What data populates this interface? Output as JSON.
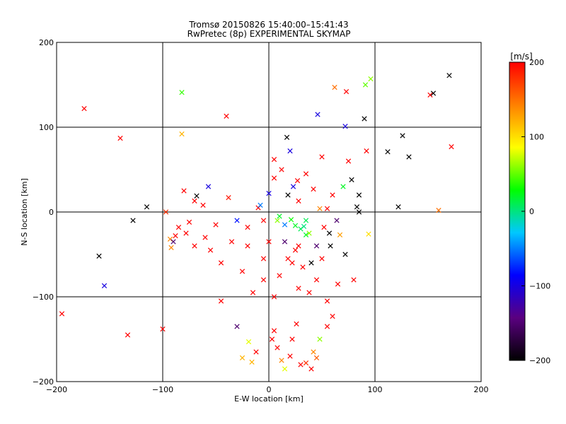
{
  "chart_data": {
    "type": "scatter",
    "title": "Tromsø 20150826 15:40:00–15:41:43",
    "subtitle": "RwPretec (8p) EXPERIMENTAL SKYMAP",
    "xlabel": "E-W location [km]",
    "ylabel": "N-S location [km]",
    "xlim": [
      -200,
      200
    ],
    "ylim": [
      -200,
      200
    ],
    "x_ticks": [
      "-200",
      "-100",
      "0",
      "100",
      "200"
    ],
    "y_ticks": [
      "-200",
      "-100",
      "0",
      "100",
      "200"
    ],
    "grid_lines": [
      -100,
      0,
      100
    ],
    "colorbar": {
      "label": "[m/s]",
      "range": [
        -200,
        200
      ],
      "ticks": [
        "-200",
        "-100",
        "0",
        "100",
        "200"
      ],
      "colors": [
        "#000000",
        "#5a0080",
        "#0000ff",
        "#00c8ff",
        "#00ff00",
        "#ffff00",
        "#ff8000",
        "#ff0000"
      ]
    },
    "large_markers": [
      {
        "x": -195,
        "y": -120,
        "v": 200
      },
      {
        "x": -174,
        "y": 122,
        "v": 200
      },
      {
        "x": -160,
        "y": -52,
        "v": -200
      },
      {
        "x": -155,
        "y": -87,
        "v": -100
      },
      {
        "x": -140,
        "y": 87,
        "v": 200
      },
      {
        "x": -133,
        "y": -145,
        "v": 200
      },
      {
        "x": -128,
        "y": -10,
        "v": -200
      },
      {
        "x": -115,
        "y": 6,
        "v": -200
      },
      {
        "x": -100,
        "y": -138,
        "v": 200
      },
      {
        "x": -97,
        "y": 0,
        "v": 180
      },
      {
        "x": -93,
        "y": -32,
        "v": 140
      },
      {
        "x": -92,
        "y": -42,
        "v": 140
      },
      {
        "x": -90,
        "y": -35,
        "v": -150
      },
      {
        "x": -82,
        "y": 141,
        "v": 40
      },
      {
        "x": -82,
        "y": 92,
        "v": 120
      },
      {
        "x": -80,
        "y": 25,
        "v": 200
      },
      {
        "x": -75,
        "y": -12,
        "v": 200
      },
      {
        "x": -70,
        "y": 13,
        "v": 200
      },
      {
        "x": -68,
        "y": 19,
        "v": -200
      },
      {
        "x": -62,
        "y": 8,
        "v": 200
      },
      {
        "x": -57,
        "y": 30,
        "v": -100
      },
      {
        "x": -45,
        "y": -105,
        "v": 200
      },
      {
        "x": -40,
        "y": 113,
        "v": 200
      },
      {
        "x": -38,
        "y": 17,
        "v": 190
      },
      {
        "x": -30,
        "y": -135,
        "v": -150
      },
      {
        "x": -25,
        "y": -172,
        "v": 120
      },
      {
        "x": -19,
        "y": -153,
        "v": 80
      },
      {
        "x": -16,
        "y": -177,
        "v": 120
      },
      {
        "x": -12,
        "y": -165,
        "v": 200
      },
      {
        "x": -10,
        "y": 5,
        "v": 200
      },
      {
        "x": -8,
        "y": 8,
        "v": -50
      },
      {
        "x": -5,
        "y": -80,
        "v": 200
      },
      {
        "x": 5,
        "y": 62,
        "v": 200
      },
      {
        "x": 8,
        "y": -10,
        "v": 60
      },
      {
        "x": 10,
        "y": -5,
        "v": 20
      },
      {
        "x": 15,
        "y": -35,
        "v": -150
      },
      {
        "x": 17,
        "y": 88,
        "v": -200
      },
      {
        "x": 20,
        "y": 72,
        "v": -100
      },
      {
        "x": 21,
        "y": -9,
        "v": 30
      },
      {
        "x": 25,
        "y": -16,
        "v": 20
      },
      {
        "x": 27,
        "y": 37,
        "v": 200
      },
      {
        "x": 30,
        "y": -20,
        "v": 10
      },
      {
        "x": 33,
        "y": -17,
        "v": 0
      },
      {
        "x": 35,
        "y": -27,
        "v": 20
      },
      {
        "x": 38,
        "y": -25,
        "v": 60
      },
      {
        "x": 40,
        "y": -60,
        "v": -200
      },
      {
        "x": 42,
        "y": 27,
        "v": 200
      },
      {
        "x": 45,
        "y": -40,
        "v": -150
      },
      {
        "x": 46,
        "y": 115,
        "v": -100
      },
      {
        "x": 48,
        "y": 4,
        "v": 140
      },
      {
        "x": 50,
        "y": 65,
        "v": 200
      },
      {
        "x": 55,
        "y": 4,
        "v": 200
      },
      {
        "x": 57,
        "y": -25,
        "v": -200
      },
      {
        "x": 62,
        "y": 147,
        "v": 150
      },
      {
        "x": 65,
        "y": -85,
        "v": 200
      },
      {
        "x": 67,
        "y": -27,
        "v": 130
      },
      {
        "x": 70,
        "y": 30,
        "v": 20
      },
      {
        "x": 72,
        "y": 101,
        "v": -100
      },
      {
        "x": 73,
        "y": 142,
        "v": 200
      },
      {
        "x": 75,
        "y": 60,
        "v": 200
      },
      {
        "x": 80,
        "y": -80,
        "v": 200
      },
      {
        "x": 83,
        "y": 6,
        "v": -200
      },
      {
        "x": 85,
        "y": 20,
        "v": -200
      },
      {
        "x": 90,
        "y": 110,
        "v": -200
      },
      {
        "x": 91,
        "y": 150,
        "v": 50
      },
      {
        "x": 92,
        "y": 72,
        "v": 200
      },
      {
        "x": 94,
        "y": -26,
        "v": 100
      },
      {
        "x": 96,
        "y": 157,
        "v": 60
      },
      {
        "x": 112,
        "y": 71,
        "v": -200
      },
      {
        "x": 122,
        "y": 6,
        "v": -200
      },
      {
        "x": 126,
        "y": 90,
        "v": -200
      },
      {
        "x": 132,
        "y": 65,
        "v": -200
      },
      {
        "x": 152,
        "y": 138,
        "v": 200
      },
      {
        "x": 155,
        "y": 140,
        "v": -200
      },
      {
        "x": 160,
        "y": 2,
        "v": 150
      },
      {
        "x": 170,
        "y": 161,
        "v": -200
      },
      {
        "x": 172,
        "y": 77,
        "v": 200
      },
      {
        "x": 3,
        "y": -150,
        "v": 200
      },
      {
        "x": 5,
        "y": -140,
        "v": 200
      },
      {
        "x": 8,
        "y": -160,
        "v": 200
      },
      {
        "x": 12,
        "y": -175,
        "v": 140
      },
      {
        "x": 15,
        "y": -185,
        "v": 80
      },
      {
        "x": 20,
        "y": -170,
        "v": 200
      },
      {
        "x": 22,
        "y": -150,
        "v": 200
      },
      {
        "x": 26,
        "y": -132,
        "v": 200
      },
      {
        "x": 30,
        "y": -180,
        "v": 200
      },
      {
        "x": 35,
        "y": -178,
        "v": 180
      },
      {
        "x": 40,
        "y": -185,
        "v": 200
      },
      {
        "x": 42,
        "y": -165,
        "v": 140
      },
      {
        "x": 45,
        "y": -172,
        "v": 160
      },
      {
        "x": 48,
        "y": -150,
        "v": 60
      },
      {
        "x": 55,
        "y": -135,
        "v": 200
      },
      {
        "x": 60,
        "y": -123,
        "v": 200
      },
      {
        "x": -60,
        "y": -30,
        "v": 200
      },
      {
        "x": -55,
        "y": -45,
        "v": 200
      },
      {
        "x": -50,
        "y": -15,
        "v": 200
      },
      {
        "x": -45,
        "y": -60,
        "v": 200
      },
      {
        "x": -35,
        "y": -35,
        "v": 200
      },
      {
        "x": -25,
        "y": -70,
        "v": 200
      },
      {
        "x": -20,
        "y": -18,
        "v": 200
      },
      {
        "x": -15,
        "y": -95,
        "v": 200
      },
      {
        "x": -5,
        "y": -55,
        "v": 200
      },
      {
        "x": 0,
        "y": -35,
        "v": 200
      },
      {
        "x": 5,
        "y": -100,
        "v": 200
      },
      {
        "x": 10,
        "y": -75,
        "v": 200
      },
      {
        "x": 18,
        "y": -55,
        "v": 200
      },
      {
        "x": 25,
        "y": -45,
        "v": 200
      },
      {
        "x": 28,
        "y": -90,
        "v": 200
      },
      {
        "x": 32,
        "y": -65,
        "v": 200
      },
      {
        "x": 38,
        "y": -95,
        "v": 200
      },
      {
        "x": 45,
        "y": -80,
        "v": 200
      },
      {
        "x": 50,
        "y": -55,
        "v": 200
      },
      {
        "x": 55,
        "y": -105,
        "v": 200
      },
      {
        "x": -70,
        "y": -40,
        "v": 200
      },
      {
        "x": -78,
        "y": -25,
        "v": 200
      },
      {
        "x": -85,
        "y": -18,
        "v": 200
      },
      {
        "x": -88,
        "y": -28,
        "v": 200
      },
      {
        "x": 0,
        "y": 22,
        "v": -100
      },
      {
        "x": 5,
        "y": 40,
        "v": 200
      },
      {
        "x": 12,
        "y": 50,
        "v": 200
      },
      {
        "x": 18,
        "y": 20,
        "v": -200
      },
      {
        "x": 23,
        "y": 30,
        "v": -100
      },
      {
        "x": 28,
        "y": 13,
        "v": 200
      },
      {
        "x": 35,
        "y": 45,
        "v": 200
      },
      {
        "x": 60,
        "y": 20,
        "v": 200
      },
      {
        "x": 64,
        "y": -10,
        "v": -150
      },
      {
        "x": -5,
        "y": -10,
        "v": 200
      },
      {
        "x": -30,
        "y": -10,
        "v": -80
      },
      {
        "x": 15,
        "y": -15,
        "v": -50
      },
      {
        "x": 35,
        "y": -10,
        "v": 10
      },
      {
        "x": 52,
        "y": -18,
        "v": 200
      },
      {
        "x": 58,
        "y": -40,
        "v": -200
      },
      {
        "x": 28,
        "y": -40,
        "v": 200
      },
      {
        "x": 22,
        "y": -60,
        "v": 200
      },
      {
        "x": -20,
        "y": -40,
        "v": 200
      },
      {
        "x": 72,
        "y": -50,
        "v": -200
      },
      {
        "x": 78,
        "y": 38,
        "v": -200
      },
      {
        "x": 85,
        "y": 0,
        "v": -200
      }
    ]
  }
}
